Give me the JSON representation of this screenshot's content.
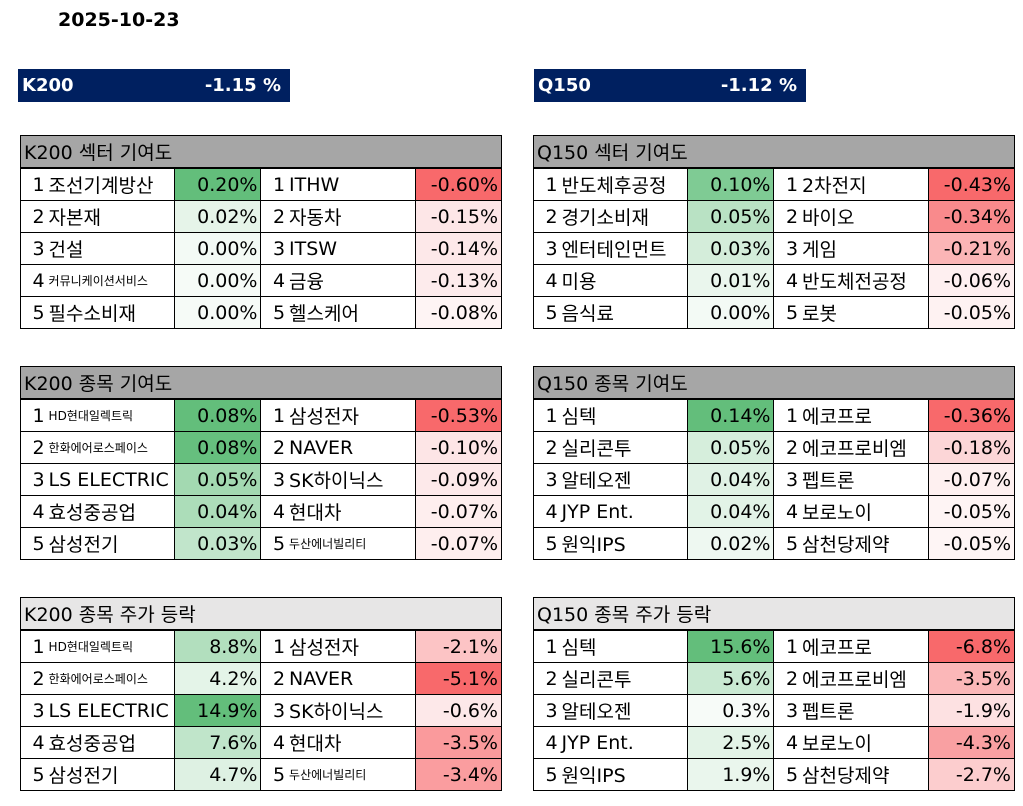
{
  "date": "2025-10-23",
  "indices": [
    {
      "name": "K200",
      "change": "-1.15 %"
    },
    {
      "name": "Q150",
      "change": "-1.12 %"
    }
  ],
  "colors": {
    "header_navy": "#002060",
    "title_dark": "#a6a6a6",
    "title_light": "#e7e6e6"
  },
  "blocks": [
    {
      "title": "K200 섹터 기여도",
      "rows": [
        {
          "rank": "1",
          "pos_name": "조선기계방산",
          "pos_val": "0.20%",
          "pos_color": "#63be7b",
          "neg_name": "ITHW",
          "neg_val": "-0.60%",
          "neg_color": "#f8696b"
        },
        {
          "rank": "2",
          "pos_name": "자본재",
          "pos_val": "0.02%",
          "pos_color": "#e6f4e9",
          "neg_name": "자동차",
          "neg_val": "-0.15%",
          "neg_color": "#fde6e7"
        },
        {
          "rank": "3",
          "pos_name": "건설",
          "pos_val": "0.00%",
          "pos_color": "#f3faf5",
          "neg_name": "ITSW",
          "neg_val": "-0.14%",
          "neg_color": "#fde8e9"
        },
        {
          "rank": "4",
          "pos_name": "커뮤니케이션서비스",
          "pos_small": true,
          "pos_val": "0.00%",
          "pos_color": "#f6fbf7",
          "neg_name": "금융",
          "neg_val": "-0.13%",
          "neg_color": "#fdebec"
        },
        {
          "rank": "5",
          "pos_name": "필수소비재",
          "pos_val": "0.00%",
          "pos_color": "#f6fbf7",
          "neg_name": "헬스케어",
          "neg_val": "-0.08%",
          "neg_color": "#fef4f4"
        }
      ]
    },
    {
      "title": "Q150 섹터 기여도",
      "rows": [
        {
          "rank": "1",
          "pos_name": "반도체후공정",
          "pos_val": "0.10%",
          "pos_color": "#7fcb94",
          "neg_name": "2차전지",
          "neg_val": "-0.43%",
          "neg_color": "#f8696b"
        },
        {
          "rank": "2",
          "pos_name": "경기소비재",
          "pos_val": "0.05%",
          "pos_color": "#b9e2c4",
          "neg_name": "바이오",
          "neg_val": "-0.34%",
          "neg_color": "#f98a8c"
        },
        {
          "rank": "3",
          "pos_name": "엔터테인먼트",
          "pos_val": "0.03%",
          "pos_color": "#d4edda",
          "neg_name": "게임",
          "neg_val": "-0.21%",
          "neg_color": "#fbb5b6"
        },
        {
          "rank": "4",
          "pos_name": "미용",
          "pos_val": "0.01%",
          "pos_color": "#eaf6ed",
          "neg_name": "반도체전공정",
          "neg_val": "-0.06%",
          "neg_color": "#feeff0"
        },
        {
          "rank": "5",
          "pos_name": "음식료",
          "pos_val": "0.00%",
          "pos_color": "#f3faf5",
          "neg_name": "로봇",
          "neg_val": "-0.05%",
          "neg_color": "#fef2f2"
        }
      ]
    },
    {
      "title": "K200 종목 기여도",
      "rows": [
        {
          "rank": "1",
          "pos_name": "HD현대일렉트릭",
          "pos_small": true,
          "pos_val": "0.08%",
          "pos_color": "#63be7b",
          "neg_name": "삼성전자",
          "neg_val": "-0.53%",
          "neg_color": "#f8696b"
        },
        {
          "rank": "2",
          "pos_name": "한화에어로스페이스",
          "pos_small": true,
          "pos_val": "0.08%",
          "pos_color": "#66bf7e",
          "neg_name": "NAVER",
          "neg_val": "-0.10%",
          "neg_color": "#fde5e6"
        },
        {
          "rank": "3",
          "pos_name": "LS ELECTRIC",
          "pos_val": "0.05%",
          "pos_color": "#a3d9b1",
          "neg_name": "SK하이닉스",
          "neg_val": "-0.09%",
          "neg_color": "#fde9ea"
        },
        {
          "rank": "4",
          "pos_name": "효성중공업",
          "pos_val": "0.04%",
          "pos_color": "#acddb9",
          "neg_name": "현대차",
          "neg_val": "-0.07%",
          "neg_color": "#feeeee"
        },
        {
          "rank": "5",
          "pos_name": "삼성전기",
          "pos_val": "0.03%",
          "pos_color": "#c1e5cb",
          "neg_name": "두산에너빌리티",
          "neg_small": true,
          "neg_val": "-0.07%",
          "neg_color": "#feeeee"
        }
      ]
    },
    {
      "title": "Q150 종목 기여도",
      "rows": [
        {
          "rank": "1",
          "pos_name": "심텍",
          "pos_val": "0.14%",
          "pos_color": "#63be7b",
          "neg_name": "에코프로",
          "neg_val": "-0.36%",
          "neg_color": "#f8696b"
        },
        {
          "rank": "2",
          "pos_name": "실리콘투",
          "pos_val": "0.05%",
          "pos_color": "#d6eedc",
          "neg_name": "에코프로비엠",
          "neg_val": "-0.18%",
          "neg_color": "#fcd6d7"
        },
        {
          "rank": "3",
          "pos_name": "알테오젠",
          "pos_val": "0.04%",
          "pos_color": "#e0f2e5",
          "neg_name": "펩트론",
          "neg_val": "-0.07%",
          "neg_color": "#fef0f0"
        },
        {
          "rank": "4",
          "pos_name": "JYP Ent.",
          "pos_val": "0.04%",
          "pos_color": "#e2f3e7",
          "neg_name": "보로노이",
          "neg_val": "-0.05%",
          "neg_color": "#fef4f4"
        },
        {
          "rank": "5",
          "pos_name": "원익IPS",
          "pos_val": "0.02%",
          "pos_color": "#eef8f1",
          "neg_name": "삼천당제약",
          "neg_val": "-0.05%",
          "neg_color": "#fef5f5"
        }
      ]
    },
    {
      "title": "K200 종목 주가 등락",
      "title_style": "light",
      "rows": [
        {
          "rank": "1",
          "pos_name": "HD현대일렉트릭",
          "pos_small": true,
          "pos_val": "8.8%",
          "pos_color": "#b2dfbe",
          "neg_name": "삼성전자",
          "neg_val": "-2.1%",
          "neg_color": "#fcc4c5"
        },
        {
          "rank": "2",
          "pos_name": "한화에어로스페이스",
          "pos_small": true,
          "pos_val": "4.2%",
          "pos_color": "#e4f4e8",
          "neg_name": "NAVER",
          "neg_val": "-5.1%",
          "neg_color": "#f8696b"
        },
        {
          "rank": "3",
          "pos_name": "LS ELECTRIC",
          "pos_val": "14.9%",
          "pos_color": "#63be7b",
          "neg_name": "SK하이닉스",
          "neg_val": "-0.6%",
          "neg_color": "#fde8e9"
        },
        {
          "rank": "4",
          "pos_name": "효성중공업",
          "pos_val": "7.6%",
          "pos_color": "#c0e5ca",
          "neg_name": "현대차",
          "neg_val": "-3.5%",
          "neg_color": "#fa9a9c"
        },
        {
          "rank": "5",
          "pos_name": "삼성전기",
          "pos_val": "4.7%",
          "pos_color": "#def1e3",
          "neg_name": "두산에너빌리티",
          "neg_small": true,
          "neg_val": "-3.4%",
          "neg_color": "#fa9d9f"
        }
      ]
    },
    {
      "title": "Q150 종목 주가 등락",
      "title_style": "light",
      "rows": [
        {
          "rank": "1",
          "pos_name": "심텍",
          "pos_val": "15.6%",
          "pos_color": "#63be7b",
          "neg_name": "에코프로",
          "neg_val": "-6.8%",
          "neg_color": "#f8696b"
        },
        {
          "rank": "2",
          "pos_name": "실리콘투",
          "pos_val": "5.6%",
          "pos_color": "#c9e9d2",
          "neg_name": "에코프로비엠",
          "neg_val": "-3.5%",
          "neg_color": "#fbb7b8"
        },
        {
          "rank": "3",
          "pos_name": "알테오젠",
          "pos_val": "0.3%",
          "pos_color": "#f7fbf8",
          "neg_name": "펩트론",
          "neg_val": "-1.9%",
          "neg_color": "#fde1e2"
        },
        {
          "rank": "4",
          "pos_name": "JYP Ent.",
          "pos_val": "2.5%",
          "pos_color": "#e3f3e7",
          "neg_name": "보로노이",
          "neg_val": "-4.3%",
          "neg_color": "#f9a0a2"
        },
        {
          "rank": "5",
          "pos_name": "원익IPS",
          "pos_val": "1.9%",
          "pos_color": "#eaf6ed",
          "neg_name": "삼천당제약",
          "neg_val": "-2.7%",
          "neg_color": "#fccdce"
        }
      ]
    }
  ]
}
